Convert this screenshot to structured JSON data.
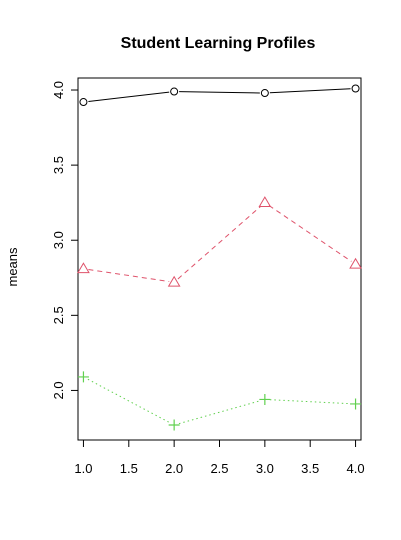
{
  "chart_data": {
    "type": "line",
    "title": "Student Learning Profiles",
    "xlabel": "",
    "ylabel": "means",
    "x": [
      1.0,
      2.0,
      3.0,
      4.0
    ],
    "xlim": [
      0.94,
      4.06
    ],
    "ylim": [
      1.67,
      4.08
    ],
    "xticks": [
      "1.0",
      "1.5",
      "2.0",
      "2.5",
      "3.0",
      "3.5",
      "4.0"
    ],
    "yticks": [
      "2.0",
      "2.5",
      "3.0",
      "3.5",
      "4.0"
    ],
    "grid": false,
    "series": [
      {
        "values": [
          3.92,
          3.99,
          3.98,
          4.01
        ],
        "color": "#000000",
        "marker": "circle",
        "line_style": "solid"
      },
      {
        "values": [
          2.81,
          2.72,
          3.25,
          2.84
        ],
        "color": "#DF536B",
        "marker": "triangle",
        "line_style": "dashed"
      },
      {
        "values": [
          2.09,
          1.77,
          1.94,
          1.91
        ],
        "color": "#61D04F",
        "marker": "plus",
        "line_style": "dotted"
      }
    ]
  }
}
